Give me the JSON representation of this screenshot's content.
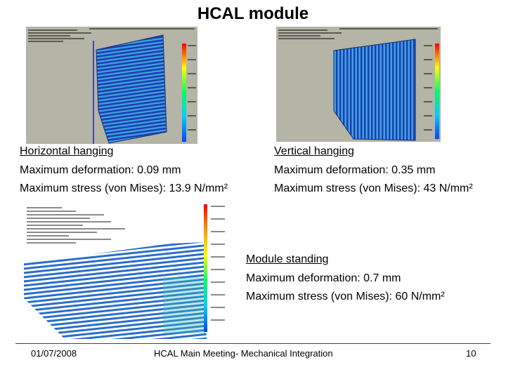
{
  "title": "HCAL module",
  "panels": {
    "horizontal": {
      "heading": "Horizontal hanging",
      "deformation": "Maximum deformation: 0.09 mm",
      "stress": "Maximum stress (von Mises): 13.9 N/mm²"
    },
    "vertical": {
      "heading": "Vertical hanging",
      "deformation": "Maximum deformation: 0.35 mm",
      "stress": "Maximum stress (von Mises): 43 N/mm²"
    },
    "standing": {
      "heading": "Module standing",
      "deformation": "Maximum deformation:  0.7 mm",
      "stress": "Maximum stress (von Mises): 60 N/mm²"
    }
  },
  "footer": {
    "date": "01/07/2008",
    "meeting": "HCAL Main Meeting- Mechanical Integration",
    "page": "10"
  },
  "colors": {
    "sim_background": "#b4b4a7",
    "standing_background": "#ffffff",
    "mesh_dark": "#1a3fb0",
    "mesh_light": "#3fa0e0",
    "colorbar": [
      "#ff0000",
      "#ff9900",
      "#ffff00",
      "#00ff66",
      "#00ccff",
      "#0044ff"
    ]
  }
}
